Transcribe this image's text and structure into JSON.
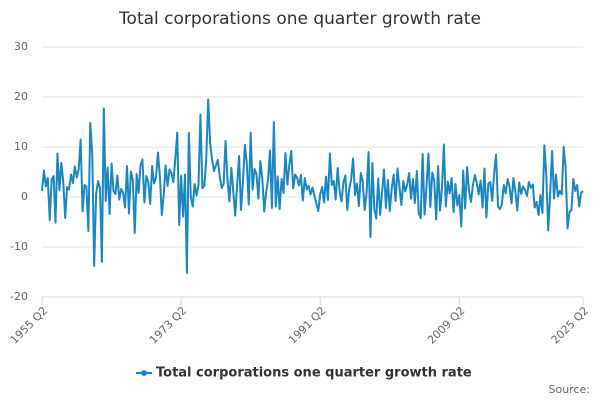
{
  "chart_data": {
    "type": "line",
    "title": "Total corporations one quarter growth rate",
    "source": "Source:",
    "categories": [
      "1955 Q2",
      null,
      null,
      null,
      null,
      null,
      null,
      null,
      null,
      null,
      null,
      null,
      null,
      null,
      null,
      null,
      null,
      null,
      null,
      null,
      null,
      null,
      null,
      null,
      null,
      null,
      null,
      null,
      null,
      null,
      null,
      null,
      null,
      null,
      null,
      null,
      null,
      null,
      null,
      null,
      null,
      null,
      null,
      null,
      null,
      null,
      null,
      null,
      null,
      null,
      null,
      null,
      null,
      null,
      null,
      null,
      null,
      null,
      null,
      null,
      null,
      null,
      null,
      null,
      null,
      null,
      null,
      null,
      null,
      null,
      null,
      null,
      "1973 Q2",
      null,
      null,
      null,
      null,
      null,
      null,
      null,
      null,
      null,
      null,
      null,
      null,
      null,
      null,
      null,
      null,
      null,
      null,
      null,
      null,
      null,
      null,
      null,
      null,
      null,
      null,
      null,
      null,
      null,
      null,
      null,
      null,
      null,
      null,
      null,
      null,
      null,
      null,
      null,
      null,
      null,
      null,
      null,
      null,
      null,
      null,
      null,
      null,
      null,
      null,
      null,
      null,
      null,
      null,
      null,
      null,
      null,
      null,
      null,
      null,
      null,
      null,
      null,
      null,
      null,
      null,
      null,
      null,
      null,
      null,
      null,
      "1991 Q2",
      null,
      null,
      null,
      null,
      null,
      null,
      null,
      null,
      null,
      null,
      null,
      null,
      null,
      null,
      null,
      null,
      null,
      null,
      null,
      null,
      null,
      null,
      null,
      null,
      null,
      null,
      null,
      null,
      null,
      null,
      null,
      null,
      null,
      null,
      null,
      null,
      null,
      null,
      null,
      null,
      null,
      null,
      null,
      null,
      null,
      null,
      null,
      null,
      null,
      null,
      null,
      null,
      null,
      null,
      null,
      null,
      null,
      null,
      null,
      null,
      null,
      null,
      null,
      null,
      null,
      null,
      null,
      null,
      null,
      null,
      null,
      "2009 Q2",
      null,
      null,
      null,
      null,
      null,
      null,
      null,
      null,
      null,
      null,
      null,
      null,
      null,
      null,
      null,
      null,
      null,
      null,
      null,
      null,
      null,
      null,
      null,
      null,
      null,
      null,
      null,
      null,
      null,
      null,
      null,
      null,
      null,
      null,
      null,
      null,
      null,
      null,
      null,
      null,
      null,
      null,
      null,
      null,
      null,
      null,
      null,
      null,
      null,
      null,
      null,
      null,
      null,
      null,
      null,
      null,
      null,
      null,
      null,
      null,
      null,
      null,
      null,
      "2025 Q2"
    ],
    "series": [
      {
        "name": "Total corporations one quarter growth rate",
        "color": "#1a87c0",
        "values": [
          1.2,
          5.3,
          2.1,
          3.8,
          -4.6,
          3.5,
          4.2,
          -5.1,
          8.7,
          1.4,
          6.8,
          3.1,
          -4.2,
          2.0,
          1.5,
          4.5,
          2.8,
          6.1,
          3.9,
          5.6,
          11.5,
          -2.9,
          2.4,
          2.1,
          -6.8,
          14.8,
          8.6,
          -13.8,
          0.5,
          3.2,
          1.8,
          -13.0,
          17.7,
          -0.8,
          5.9,
          -3.4,
          6.7,
          1.2,
          0.6,
          4.3,
          -0.5,
          1.6,
          0.9,
          -2.1,
          6.2,
          -3.3,
          5.1,
          3.4,
          -7.2,
          4.6,
          0.8,
          6.4,
          7.5,
          -1.1,
          4.2,
          3.0,
          -1.4,
          6.2,
          2.7,
          3.9,
          8.9,
          4.3,
          -3.6,
          0.4,
          6.3,
          2.2,
          5.5,
          4.8,
          3.0,
          7.7,
          12.9,
          -5.6,
          4.3,
          -3.9,
          4.5,
          -15.2,
          12.8,
          0.1,
          -1.9,
          2.6,
          0.3,
          2.4,
          16.5,
          1.8,
          2.2,
          7.4,
          19.5,
          11.0,
          7.5,
          5.2,
          6.3,
          7.4,
          4.1,
          1.8,
          2.6,
          11.2,
          3.5,
          -0.9,
          5.8,
          1.1,
          -3.7,
          2.4,
          8.2,
          -2.6,
          3.1,
          10.4,
          6.7,
          -1.5,
          12.9,
          1.5,
          5.6,
          4.6,
          -0.3,
          7.2,
          3.8,
          -2.9,
          0.9,
          3.5,
          9.3,
          -2.2,
          15.0,
          -1.9,
          4.1,
          -2.4,
          3.6,
          0.8,
          8.8,
          2.5,
          6.4,
          9.2,
          1.7,
          4.5,
          3.9,
          2.3,
          4.4,
          -0.7,
          3.8,
          1.5,
          2.2,
          0.5,
          1.9,
          0.2,
          -1.3,
          -2.8,
          0.6,
          2.0,
          -1.1,
          4.1,
          -0.6,
          8.7,
          2.4,
          3.2,
          -0.5,
          5.8,
          1.3,
          -0.9,
          2.9,
          4.3,
          -2.6,
          1.6,
          3.5,
          7.7,
          0.4,
          2.7,
          -1.8,
          4.8,
          3.1,
          -2.6,
          0.8,
          9.0,
          -8.0,
          6.8,
          -2.5,
          -4.3,
          3.7,
          -3.6,
          0.9,
          5.5,
          -2.2,
          3.4,
          -2.8,
          1.7,
          4.5,
          -0.8,
          5.7,
          2.0,
          -1.6,
          3.2,
          1.1,
          2.5,
          4.8,
          -0.3,
          3.6,
          -1.2,
          5.2,
          -3.3,
          -4.2,
          8.6,
          -3.5,
          2.1,
          8.7,
          -2.0,
          4.9,
          3.3,
          -4.5,
          6.2,
          -2.7,
          1.8,
          10.5,
          -1.9,
          3.1,
          0.7,
          3.8,
          -3.0,
          2.6,
          -1.7,
          0.4,
          -5.9,
          5.3,
          -2.3,
          6.0,
          1.3,
          -1.0,
          2.3,
          4.4,
          2.9,
          0.5,
          3.3,
          -2.1,
          5.7,
          -4.1,
          2.7,
          3.0,
          -0.8,
          4.7,
          8.5,
          -1.9,
          -2.4,
          -1.5,
          2.4,
          0.7,
          3.6,
          2.0,
          -1.3,
          3.8,
          1.1,
          -2.7,
          2.9,
          0.6,
          2.1,
          1.4,
          0.2,
          3.0,
          1.8,
          2.5,
          -2.1,
          -1.0,
          -3.6,
          0.4,
          -3.2,
          10.3,
          4.3,
          -6.7,
          0.6,
          9.2,
          -0.3,
          4.5,
          0.1,
          1.2,
          0.5,
          10.0,
          5.8,
          -6.3,
          -3.0,
          -2.6,
          3.6,
          1.2,
          2.4,
          -1.9,
          0.8,
          1.2
        ]
      }
    ],
    "ylim": [
      -20,
      30
    ],
    "yticks": [
      -20,
      -10,
      0,
      10,
      20,
      30
    ],
    "grid": true,
    "legend": "bottom"
  }
}
